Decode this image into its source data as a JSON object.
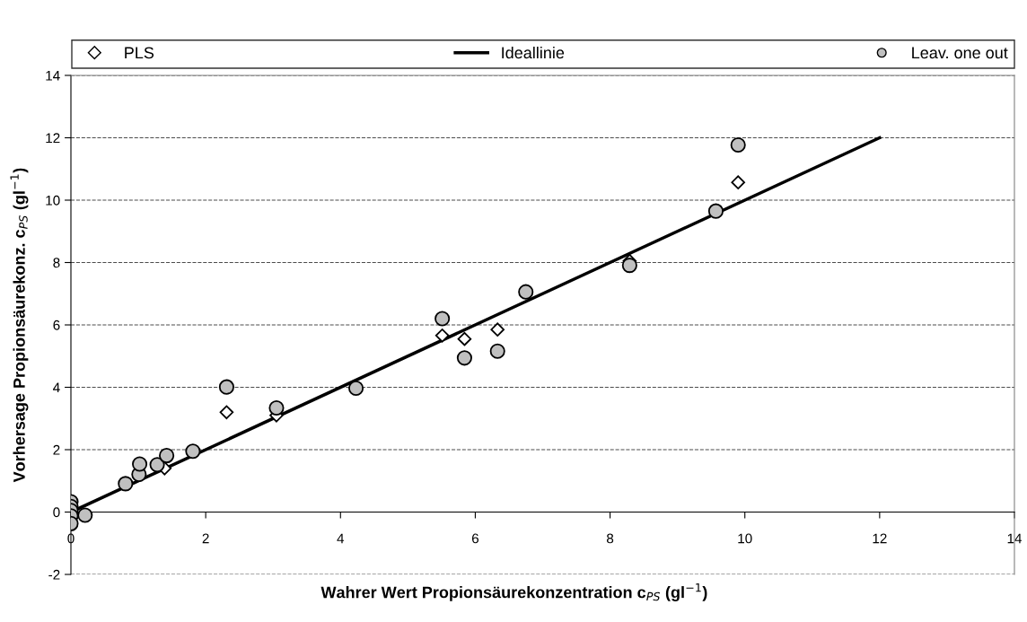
{
  "chart_data": {
    "type": "scatter",
    "xlabel": "Wahrer Wert Propionsäurekonzentration c$_{PS}$ (gl$^{−1}$)",
    "ylabel": "Vorhersage Propionsäurekonz. c$_{PS}$ (gl$^{−1}$)",
    "xlim": [
      0,
      14
    ],
    "xticks": [
      0,
      2,
      4,
      6,
      8,
      10,
      12,
      14
    ],
    "ylim": [
      -2,
      14
    ],
    "yticks": [
      -2,
      0,
      2,
      4,
      6,
      8,
      10,
      12,
      14
    ],
    "grid": "y",
    "legend": "top",
    "series": [
      {
        "name": "PLS",
        "marker": "diamond",
        "color": "#ffffff",
        "x": [
          1.39,
          2.31,
          3.05,
          5.51,
          5.84,
          6.33,
          8.29,
          9.9
        ],
        "values": [
          1.4,
          3.2,
          3.1,
          5.66,
          5.55,
          5.85,
          8.05,
          10.57
        ]
      },
      {
        "name": "Ideallinie",
        "type": "line",
        "color": "#000000",
        "x": [
          0,
          12
        ],
        "values": [
          0,
          12
        ]
      },
      {
        "name": "Leav. one out",
        "marker": "circle",
        "color": "#c0c0c0",
        "x": [
          0,
          0,
          0,
          0,
          0,
          0.21,
          0.81,
          1.01,
          1.02,
          1.28,
          1.42,
          1.81,
          2.31,
          3.05,
          4.23,
          5.51,
          5.84,
          6.33,
          6.75,
          8.29,
          9.57,
          9.9
        ],
        "values": [
          0.33,
          0.18,
          0.05,
          -0.12,
          -0.37,
          -0.1,
          0.91,
          1.21,
          1.54,
          1.52,
          1.81,
          1.95,
          4.01,
          3.34,
          3.97,
          6.2,
          4.94,
          5.16,
          7.06,
          7.91,
          9.65,
          11.77
        ]
      }
    ]
  }
}
